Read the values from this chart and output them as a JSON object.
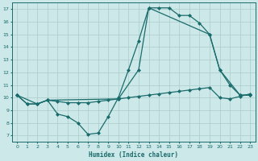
{
  "xlabel": "Humidex (Indice chaleur)",
  "ylabel": "",
  "bg_color": "#cce8e8",
  "line_color": "#1a6b6b",
  "grid_color": "#b0d0d0",
  "xlim": [
    -0.5,
    23.5
  ],
  "ylim": [
    6.5,
    17.5
  ],
  "xticks": [
    0,
    1,
    2,
    3,
    4,
    5,
    6,
    7,
    8,
    9,
    10,
    11,
    12,
    13,
    14,
    15,
    16,
    17,
    18,
    19,
    20,
    21,
    22,
    23
  ],
  "yticks": [
    7,
    8,
    9,
    10,
    11,
    12,
    13,
    14,
    15,
    16,
    17
  ],
  "line1_x": [
    0,
    1,
    2,
    3,
    4,
    5,
    6,
    7,
    8,
    9,
    10,
    11,
    12,
    13,
    14,
    15,
    16,
    17,
    18,
    19,
    20,
    21,
    22,
    23
  ],
  "line1_y": [
    10.2,
    9.5,
    9.5,
    9.8,
    9.7,
    9.6,
    9.6,
    9.6,
    9.7,
    9.8,
    9.9,
    10.0,
    10.1,
    10.2,
    10.3,
    10.4,
    10.5,
    10.6,
    10.7,
    10.8,
    10.0,
    9.9,
    10.1,
    10.3
  ],
  "line2_x": [
    0,
    1,
    2,
    3,
    4,
    5,
    6,
    7,
    8,
    9,
    10,
    11,
    12,
    13,
    14,
    15,
    16,
    17,
    18,
    19,
    20,
    21,
    22,
    23
  ],
  "line2_y": [
    10.2,
    9.5,
    9.5,
    9.8,
    8.7,
    8.5,
    8.0,
    7.1,
    7.2,
    8.5,
    10.0,
    12.2,
    14.5,
    17.1,
    17.1,
    17.1,
    16.5,
    16.5,
    15.9,
    15.0,
    12.2,
    11.0,
    10.2,
    10.2
  ],
  "line3_x": [
    0,
    2,
    3,
    10,
    12,
    13,
    19,
    20,
    22,
    23
  ],
  "line3_y": [
    10.2,
    9.5,
    9.8,
    9.9,
    12.2,
    17.1,
    15.0,
    12.2,
    10.2,
    10.2
  ]
}
